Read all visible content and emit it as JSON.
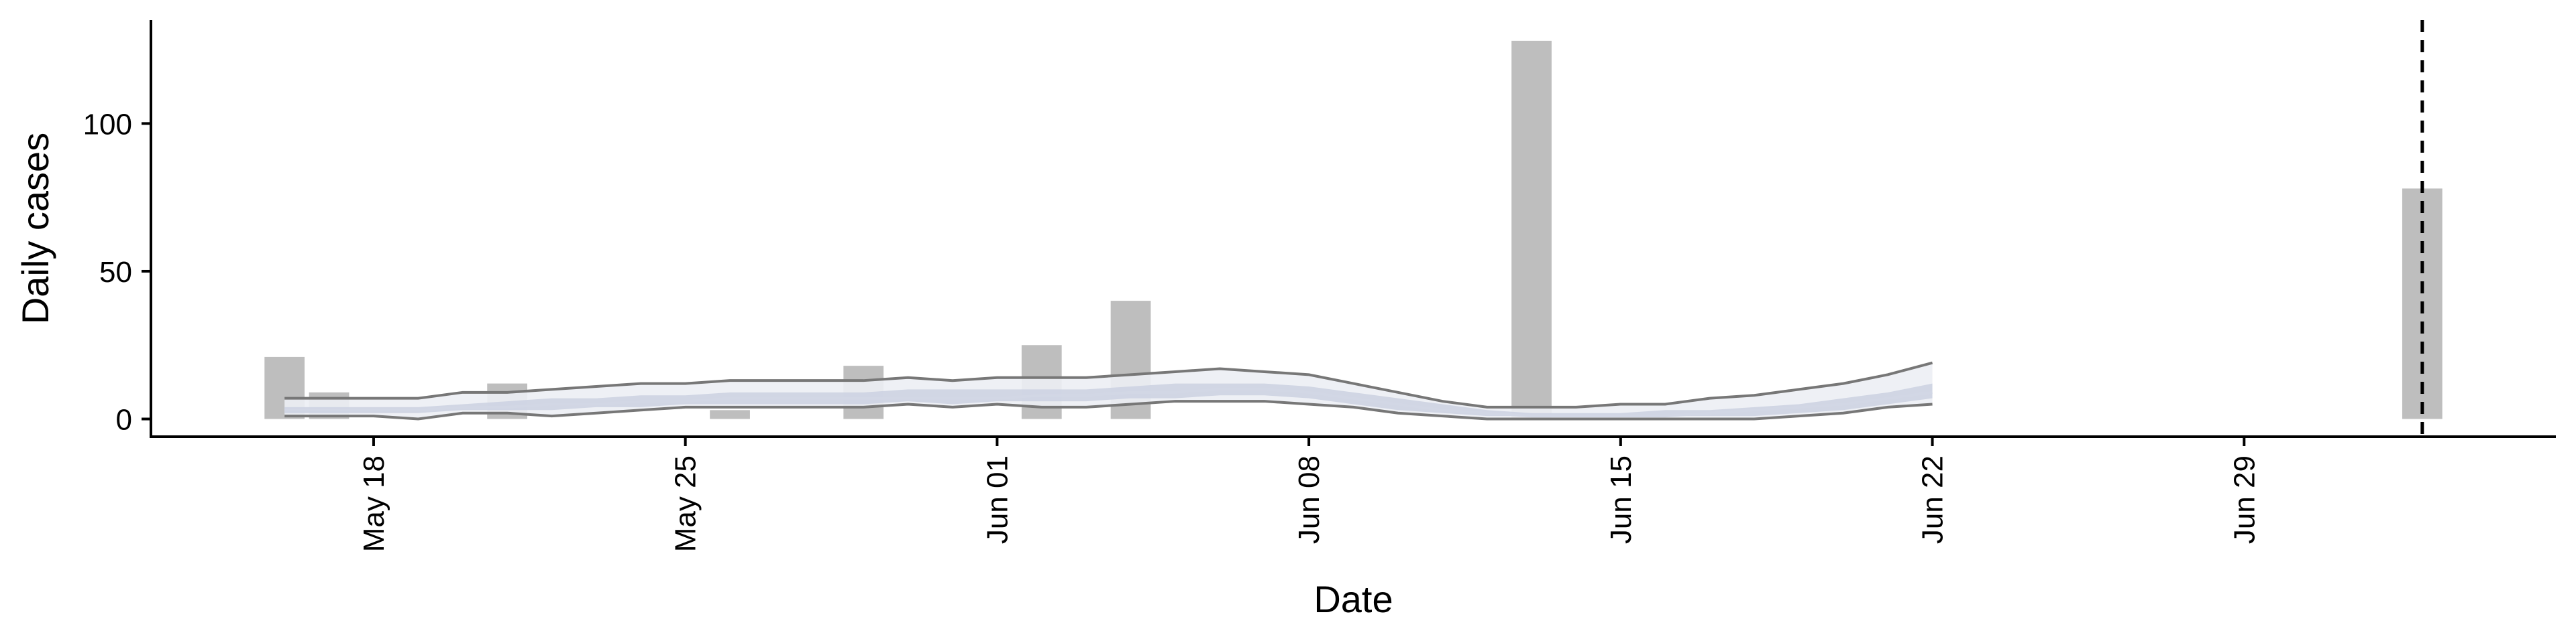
{
  "chart_data": {
    "type": "bar",
    "xlabel": "Date",
    "ylabel": "Daily cases",
    "xlim": [
      "2020-05-13",
      "2020-07-06"
    ],
    "ylim": [
      -6,
      135
    ],
    "x_ticks": [
      {
        "date": "2020-05-18",
        "label": "May 18"
      },
      {
        "date": "2020-05-25",
        "label": "May 25"
      },
      {
        "date": "2020-06-01",
        "label": "Jun 01"
      },
      {
        "date": "2020-06-08",
        "label": "Jun 08"
      },
      {
        "date": "2020-06-15",
        "label": "Jun 15"
      },
      {
        "date": "2020-06-22",
        "label": "Jun 22"
      },
      {
        "date": "2020-06-29",
        "label": "Jun 29"
      }
    ],
    "y_ticks": [
      0,
      50,
      100
    ],
    "grid": false,
    "vline": {
      "date": "2020-07-03",
      "style": "dashed"
    },
    "bars": [
      {
        "date": "2020-05-16",
        "value": 21
      },
      {
        "date": "2020-05-17",
        "value": 9
      },
      {
        "date": "2020-05-21",
        "value": 12
      },
      {
        "date": "2020-05-26",
        "value": 3
      },
      {
        "date": "2020-05-29",
        "value": 18
      },
      {
        "date": "2020-06-02",
        "value": 25
      },
      {
        "date": "2020-06-04",
        "value": 40
      },
      {
        "date": "2020-06-13",
        "value": 128
      },
      {
        "date": "2020-07-03",
        "value": 78
      }
    ],
    "estimate": {
      "dates": [
        "2020-05-16",
        "2020-05-17",
        "2020-05-18",
        "2020-05-19",
        "2020-05-20",
        "2020-05-21",
        "2020-05-22",
        "2020-05-23",
        "2020-05-24",
        "2020-05-25",
        "2020-05-26",
        "2020-05-27",
        "2020-05-28",
        "2020-05-29",
        "2020-05-30",
        "2020-05-31",
        "2020-06-01",
        "2020-06-02",
        "2020-06-03",
        "2020-06-04",
        "2020-06-05",
        "2020-06-06",
        "2020-06-07",
        "2020-06-08",
        "2020-06-09",
        "2020-06-10",
        "2020-06-11",
        "2020-06-12",
        "2020-06-13",
        "2020-06-14",
        "2020-06-15",
        "2020-06-16",
        "2020-06-17",
        "2020-06-18",
        "2020-06-19",
        "2020-06-20",
        "2020-06-21",
        "2020-06-22"
      ],
      "upper90": [
        7,
        7,
        7,
        7,
        9,
        9,
        10,
        11,
        12,
        12,
        13,
        13,
        13,
        13,
        14,
        13,
        14,
        14,
        14,
        15,
        16,
        17,
        16,
        15,
        12,
        9,
        6,
        4,
        4,
        4,
        5,
        5,
        7,
        8,
        10,
        12,
        15,
        19
      ],
      "upper50": [
        4,
        4,
        4,
        4,
        5,
        6,
        7,
        7,
        8,
        8,
        9,
        9,
        9,
        9,
        10,
        10,
        10,
        10,
        10,
        11,
        12,
        12,
        12,
        11,
        9,
        7,
        5,
        3,
        2,
        2,
        2,
        3,
        3,
        4,
        5,
        7,
        9,
        12
      ],
      "median": [
        3,
        3,
        3,
        3,
        4,
        4,
        5,
        5,
        6,
        6,
        7,
        7,
        7,
        7,
        7,
        7,
        7,
        8,
        8,
        9,
        9,
        10,
        10,
        9,
        7,
        5,
        3,
        2,
        1,
        1,
        1,
        1,
        2,
        3,
        4,
        5,
        7,
        9
      ],
      "lower50": [
        2,
        2,
        2,
        2,
        3,
        3,
        3,
        4,
        4,
        5,
        5,
        5,
        5,
        5,
        6,
        5,
        6,
        6,
        6,
        7,
        7,
        8,
        8,
        7,
        5,
        3,
        2,
        1,
        1,
        1,
        1,
        1,
        1,
        1,
        2,
        3,
        5,
        7
      ],
      "lower90": [
        1,
        1,
        1,
        0,
        2,
        2,
        1,
        2,
        3,
        4,
        4,
        4,
        4,
        4,
        5,
        4,
        5,
        4,
        4,
        5,
        6,
        6,
        6,
        5,
        4,
        2,
        1,
        0,
        0,
        0,
        0,
        0,
        0,
        0,
        1,
        2,
        4,
        5
      ]
    },
    "colors": {
      "bar": "#bebebe",
      "band_outer": "#eceef4",
      "band_inner": "#cdd3e2",
      "median": "#d2d7e5",
      "bound_line": "#777777",
      "axis": "#000000"
    }
  }
}
